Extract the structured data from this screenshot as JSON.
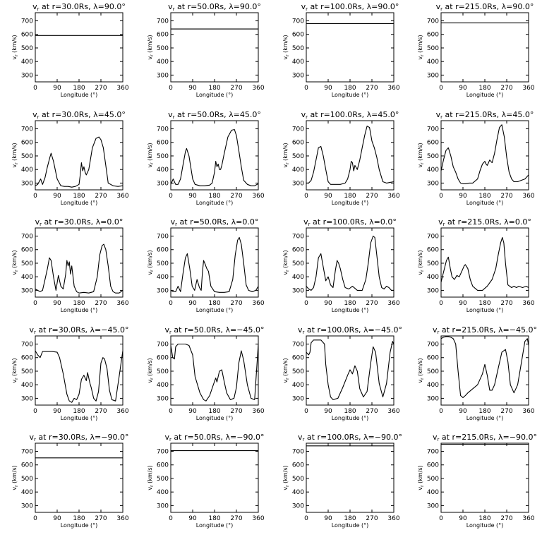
{
  "chart_data": {
    "type": "line",
    "panel_title_prefix": "v",
    "panel_title_subscript": "r",
    "xlabel": "Longitude (°)",
    "ylabel": "v",
    "ylabel_subscript": "r",
    "ylabel_unit": " (km/s)",
    "xlim": [
      0,
      360
    ],
    "ylim": [
      250,
      760
    ],
    "xticks": [
      0,
      90,
      180,
      270,
      360
    ],
    "yticks": [
      300,
      400,
      500,
      600,
      700
    ],
    "grid": false,
    "panels": [
      {
        "title": " at r=30.0Rs, λ=90.0°",
        "x": [
          0,
          360
        ],
        "y": [
          592,
          592
        ]
      },
      {
        "title": " at r=50.0Rs, λ=90.0°",
        "x": [
          0,
          360
        ],
        "y": [
          640,
          640
        ]
      },
      {
        "title": " at r=100.0Rs, λ=90.0°",
        "x": [
          0,
          360
        ],
        "y": [
          680,
          680
        ]
      },
      {
        "title": " at r=215.0Rs, λ=90.0°",
        "x": [
          0,
          360
        ],
        "y": [
          685,
          685
        ]
      },
      {
        "title": " at r=30.0Rs, λ=45.0°",
        "x": [
          0,
          10,
          22,
          30,
          40,
          50,
          60,
          65,
          75,
          90,
          105,
          120,
          135,
          150,
          165,
          180,
          185,
          190,
          195,
          200,
          205,
          210,
          220,
          235,
          250,
          262,
          270,
          280,
          290,
          300,
          320,
          340,
          360
        ],
        "y": [
          280,
          290,
          330,
          290,
          340,
          420,
          490,
          520,
          460,
          330,
          280,
          275,
          275,
          270,
          275,
          290,
          360,
          450,
          390,
          420,
          380,
          360,
          400,
          560,
          630,
          640,
          620,
          560,
          430,
          300,
          280,
          275,
          280
        ]
      },
      {
        "title": " at r=50.0Rs, λ=45.0°",
        "x": [
          0,
          10,
          20,
          30,
          40,
          50,
          60,
          65,
          75,
          90,
          100,
          120,
          140,
          160,
          170,
          175,
          180,
          185,
          190,
          195,
          200,
          205,
          210,
          220,
          235,
          250,
          262,
          270,
          280,
          290,
          300,
          315,
          330,
          345,
          360
        ],
        "y": [
          290,
          330,
          290,
          290,
          330,
          430,
          530,
          555,
          500,
          330,
          290,
          280,
          280,
          285,
          300,
          340,
          380,
          460,
          420,
          440,
          400,
          400,
          430,
          520,
          640,
          690,
          695,
          650,
          540,
          420,
          320,
          290,
          280,
          280,
          295
        ]
      },
      {
        "title": " at r=100.0Rs, λ=45.0°",
        "x": [
          0,
          10,
          20,
          30,
          40,
          50,
          60,
          70,
          80,
          90,
          100,
          120,
          140,
          160,
          170,
          180,
          185,
          190,
          195,
          200,
          210,
          220,
          230,
          240,
          250,
          260,
          270,
          280,
          290,
          300,
          315,
          330,
          345,
          360
        ],
        "y": [
          300,
          300,
          320,
          380,
          470,
          560,
          570,
          500,
          400,
          310,
          290,
          290,
          290,
          300,
          330,
          400,
          460,
          450,
          390,
          430,
          400,
          470,
          560,
          650,
          720,
          710,
          610,
          560,
          490,
          400,
          310,
          300,
          305,
          310
        ]
      },
      {
        "title": " at r=215.0Rs, λ=45.0°",
        "x": [
          0,
          10,
          20,
          30,
          40,
          50,
          60,
          70,
          80,
          90,
          100,
          115,
          130,
          150,
          160,
          170,
          180,
          185,
          190,
          195,
          200,
          210,
          220,
          230,
          240,
          250,
          260,
          270,
          280,
          290,
          300,
          315,
          330,
          345,
          360
        ],
        "y": [
          390,
          470,
          540,
          560,
          500,
          420,
          380,
          330,
          300,
          295,
          295,
          300,
          300,
          330,
          390,
          440,
          460,
          440,
          430,
          450,
          470,
          450,
          520,
          620,
          710,
          730,
          640,
          490,
          380,
          330,
          310,
          310,
          320,
          330,
          360
        ]
      },
      {
        "title": " at r=30.0Rs, λ=0.0°",
        "x": [
          0,
          10,
          20,
          30,
          40,
          50,
          58,
          65,
          75,
          85,
          95,
          105,
          115,
          125,
          130,
          135,
          140,
          145,
          150,
          160,
          170,
          180,
          200,
          220,
          240,
          255,
          265,
          275,
          282,
          290,
          300,
          310,
          320,
          330,
          345,
          360
        ],
        "y": [
          310,
          300,
          290,
          300,
          380,
          460,
          540,
          520,
          400,
          300,
          410,
          330,
          310,
          420,
          520,
          480,
          510,
          420,
          480,
          330,
          290,
          280,
          285,
          280,
          290,
          400,
          560,
          630,
          640,
          600,
          480,
          330,
          290,
          280,
          280,
          300
        ]
      },
      {
        "title": " at r=50.0Rs, λ=0.0°",
        "x": [
          0,
          10,
          20,
          30,
          40,
          50,
          60,
          68,
          78,
          88,
          98,
          108,
          118,
          125,
          130,
          135,
          140,
          148,
          155,
          165,
          180,
          200,
          220,
          240,
          255,
          265,
          275,
          282,
          290,
          300,
          310,
          320,
          335,
          350,
          360
        ],
        "y": [
          300,
          290,
          290,
          330,
          290,
          420,
          540,
          570,
          460,
          330,
          300,
          380,
          320,
          300,
          430,
          520,
          500,
          460,
          440,
          330,
          290,
          285,
          285,
          290,
          380,
          560,
          670,
          690,
          640,
          500,
          340,
          300,
          290,
          300,
          330
        ]
      },
      {
        "title": " at r=100.0Rs, λ=0.0°",
        "x": [
          0,
          10,
          20,
          30,
          40,
          50,
          60,
          70,
          80,
          90,
          100,
          110,
          120,
          127,
          133,
          140,
          150,
          160,
          175,
          190,
          210,
          230,
          245,
          255,
          265,
          275,
          282,
          290,
          300,
          310,
          320,
          330,
          340,
          350,
          360
        ],
        "y": [
          330,
          310,
          300,
          320,
          400,
          540,
          570,
          470,
          370,
          400,
          340,
          320,
          450,
          520,
          500,
          460,
          380,
          320,
          310,
          330,
          300,
          300,
          380,
          500,
          650,
          700,
          690,
          560,
          400,
          320,
          310,
          330,
          320,
          300,
          300
        ]
      },
      {
        "title": " at r=215.0Rs, λ=0.0°",
        "x": [
          0,
          8,
          15,
          22,
          30,
          38,
          45,
          55,
          65,
          75,
          85,
          95,
          100,
          110,
          120,
          130,
          150,
          170,
          190,
          210,
          225,
          235,
          245,
          252,
          258,
          265,
          275,
          290,
          300,
          310,
          320,
          335,
          350,
          360
        ],
        "y": [
          360,
          420,
          470,
          520,
          545,
          460,
          400,
          380,
          410,
          400,
          440,
          480,
          490,
          460,
          380,
          330,
          300,
          300,
          330,
          380,
          460,
          560,
          650,
          690,
          650,
          500,
          340,
          320,
          330,
          320,
          330,
          320,
          330,
          320
        ]
      },
      {
        "title": " at r=30.0Rs, λ=−45.0°",
        "x": [
          0,
          10,
          20,
          30,
          50,
          70,
          90,
          100,
          115,
          130,
          140,
          150,
          160,
          170,
          180,
          190,
          200,
          210,
          215,
          225,
          230,
          240,
          250,
          260,
          270,
          278,
          285,
          295,
          305,
          315,
          330,
          345,
          360
        ],
        "y": [
          650,
          620,
          600,
          645,
          645,
          645,
          640,
          600,
          480,
          330,
          280,
          270,
          300,
          290,
          330,
          440,
          470,
          430,
          490,
          410,
          380,
          300,
          280,
          350,
          560,
          600,
          590,
          520,
          360,
          290,
          280,
          460,
          650
        ]
      },
      {
        "title": " at r=50.0Rs, λ=−45.0°",
        "x": [
          0,
          8,
          15,
          20,
          30,
          40,
          50,
          60,
          75,
          90,
          100,
          120,
          135,
          145,
          160,
          175,
          185,
          190,
          200,
          210,
          220,
          230,
          245,
          260,
          270,
          280,
          290,
          300,
          315,
          330,
          345,
          360
        ],
        "y": [
          690,
          600,
          590,
          680,
          700,
          700,
          700,
          700,
          690,
          620,
          460,
          340,
          290,
          280,
          320,
          400,
          450,
          420,
          500,
          510,
          420,
          340,
          290,
          300,
          380,
          560,
          650,
          580,
          400,
          300,
          290,
          700
        ]
      },
      {
        "title": " at r=100.0Rs, λ=−45.0°",
        "x": [
          0,
          10,
          15,
          20,
          30,
          45,
          60,
          75,
          80,
          90,
          100,
          110,
          130,
          150,
          170,
          180,
          190,
          200,
          210,
          220,
          235,
          250,
          265,
          275,
          285,
          300,
          315,
          330,
          345,
          355,
          360
        ],
        "y": [
          640,
          620,
          640,
          710,
          730,
          730,
          730,
          700,
          550,
          400,
          310,
          290,
          300,
          380,
          470,
          510,
          480,
          540,
          500,
          370,
          310,
          350,
          560,
          680,
          640,
          410,
          310,
          410,
          640,
          720,
          700
        ]
      },
      {
        "title": " at r=215.0Rs, λ=−45.0°",
        "x": [
          0,
          10,
          20,
          30,
          40,
          50,
          60,
          70,
          80,
          90,
          100,
          110,
          130,
          150,
          170,
          180,
          190,
          200,
          210,
          220,
          235,
          250,
          265,
          275,
          285,
          300,
          315,
          330,
          345,
          355,
          360
        ],
        "y": [
          740,
          750,
          755,
          755,
          750,
          740,
          700,
          500,
          320,
          305,
          320,
          340,
          370,
          400,
          480,
          550,
          470,
          360,
          360,
          400,
          520,
          640,
          660,
          570,
          400,
          340,
          400,
          560,
          720,
          740,
          690
        ]
      },
      {
        "title": " at r=30.0Rs, λ=−90.0°",
        "x": [
          0,
          360
        ],
        "y": [
          652,
          652
        ]
      },
      {
        "title": " at r=50.0Rs, λ=−90.0°",
        "x": [
          0,
          360
        ],
        "y": [
          705,
          705
        ]
      },
      {
        "title": " at r=100.0Rs, λ=−90.0°",
        "x": [
          0,
          360
        ],
        "y": [
          740,
          740
        ]
      },
      {
        "title": " at r=215.0Rs, λ=−90.0°",
        "x": [
          0,
          360
        ],
        "y": [
          752,
          752
        ]
      }
    ]
  }
}
